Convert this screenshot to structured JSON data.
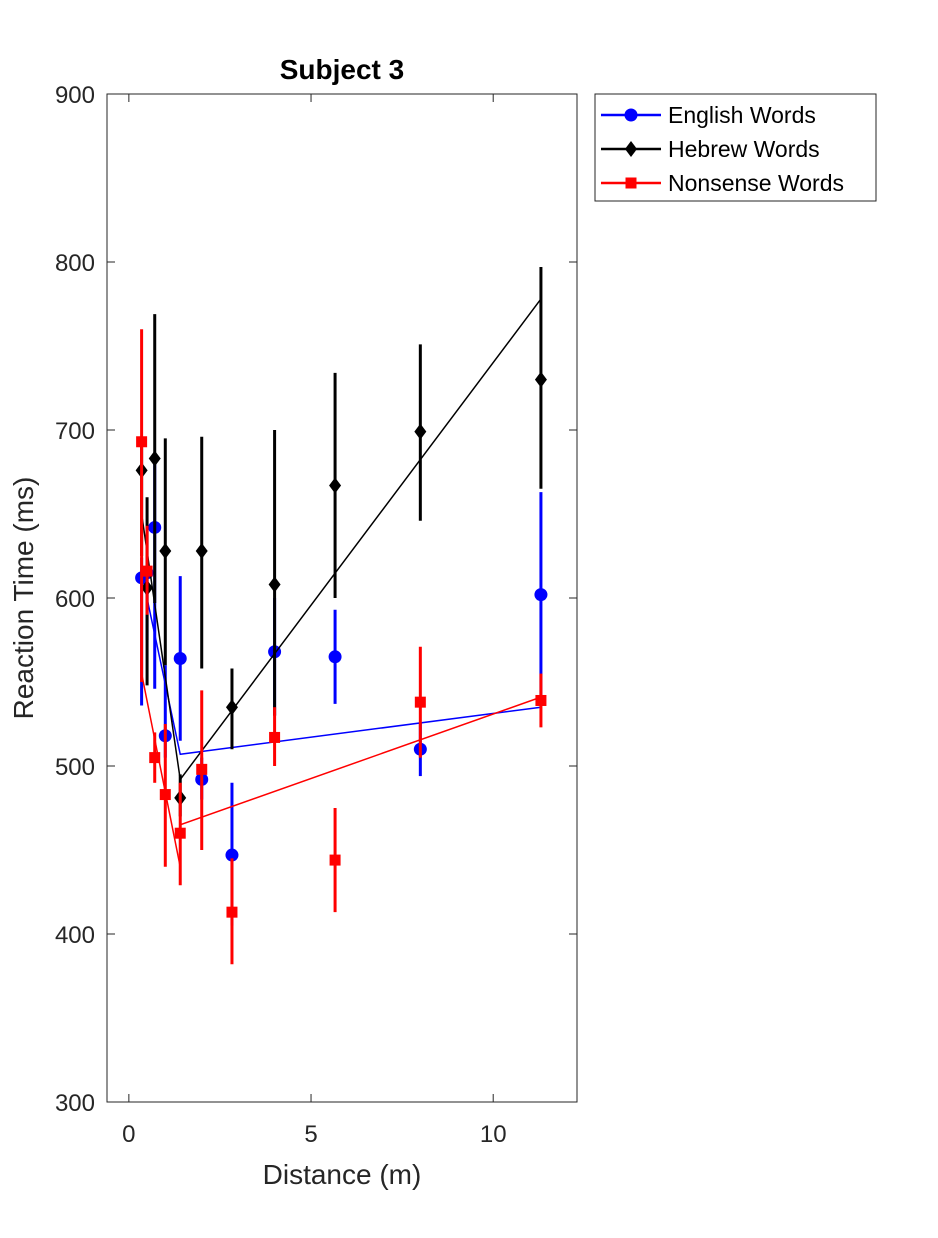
{
  "chart_data": {
    "type": "scatter",
    "title": "Subject 3",
    "xlabel": "Distance (m)",
    "ylabel": "Reaction Time (ms)",
    "xlim": [
      -0.6,
      12.3
    ],
    "ylim": [
      300,
      900
    ],
    "xticks": [
      0,
      5,
      10
    ],
    "yticks": [
      300,
      400,
      500,
      600,
      700,
      800,
      900
    ],
    "grid": false,
    "legend_position": "outside-top-right",
    "series": [
      {
        "name": "English Words",
        "color": "#0000ff",
        "marker": "circle",
        "points": [
          {
            "x": 0.35,
            "y": 612,
            "lo": 536,
            "hi": 624
          },
          {
            "x": 0.5,
            "y": 615,
            "lo": 575,
            "hi": 625
          },
          {
            "x": 0.71,
            "y": 642,
            "lo": 546,
            "hi": 680
          },
          {
            "x": 1.0,
            "y": 518,
            "lo": 505,
            "hi": 560
          },
          {
            "x": 1.41,
            "y": 564,
            "lo": 515,
            "hi": 613
          },
          {
            "x": 2.0,
            "y": 492,
            "lo": 480,
            "hi": 505
          },
          {
            "x": 2.83,
            "y": 447,
            "lo": 405,
            "hi": 490
          },
          {
            "x": 4.0,
            "y": 568,
            "lo": 530,
            "hi": 600
          },
          {
            "x": 5.66,
            "y": 565,
            "lo": 537,
            "hi": 593
          },
          {
            "x": 8.0,
            "y": 510,
            "lo": 494,
            "hi": 526
          },
          {
            "x": 11.31,
            "y": 602,
            "lo": 540,
            "hi": 663
          }
        ],
        "fit": [
          [
            0.35,
            615
          ],
          [
            1.41,
            507
          ],
          [
            11.31,
            535
          ]
        ]
      },
      {
        "name": "Hebrew Words",
        "color": "#000000",
        "marker": "diamond",
        "points": [
          {
            "x": 0.35,
            "y": 676,
            "lo": 625,
            "hi": 690
          },
          {
            "x": 0.5,
            "y": 606,
            "lo": 548,
            "hi": 660
          },
          {
            "x": 0.71,
            "y": 683,
            "lo": 597,
            "hi": 769
          },
          {
            "x": 1.0,
            "y": 628,
            "lo": 560,
            "hi": 695
          },
          {
            "x": 1.41,
            "y": 481,
            "lo": 470,
            "hi": 495
          },
          {
            "x": 2.0,
            "y": 628,
            "lo": 558,
            "hi": 696
          },
          {
            "x": 2.83,
            "y": 535,
            "lo": 510,
            "hi": 558
          },
          {
            "x": 4.0,
            "y": 608,
            "lo": 530,
            "hi": 700
          },
          {
            "x": 5.66,
            "y": 667,
            "lo": 600,
            "hi": 734
          },
          {
            "x": 8.0,
            "y": 699,
            "lo": 646,
            "hi": 751
          },
          {
            "x": 11.31,
            "y": 730,
            "lo": 665,
            "hi": 797
          }
        ],
        "fit": [
          [
            0.35,
            650
          ],
          [
            1.41,
            492
          ],
          [
            11.31,
            778
          ]
        ]
      },
      {
        "name": "Nonsense Words",
        "color": "#ff0000",
        "marker": "square",
        "points": [
          {
            "x": 0.35,
            "y": 693,
            "lo": 550,
            "hi": 760
          },
          {
            "x": 0.5,
            "y": 616,
            "lo": 590,
            "hi": 643
          },
          {
            "x": 0.71,
            "y": 505,
            "lo": 490,
            "hi": 520
          },
          {
            "x": 1.0,
            "y": 483,
            "lo": 440,
            "hi": 525
          },
          {
            "x": 1.41,
            "y": 460,
            "lo": 429,
            "hi": 490
          },
          {
            "x": 2.0,
            "y": 498,
            "lo": 450,
            "hi": 545
          },
          {
            "x": 2.83,
            "y": 413,
            "lo": 382,
            "hi": 445
          },
          {
            "x": 4.0,
            "y": 517,
            "lo": 500,
            "hi": 535
          },
          {
            "x": 5.66,
            "y": 444,
            "lo": 413,
            "hi": 475
          },
          {
            "x": 8.0,
            "y": 538,
            "lo": 505,
            "hi": 571
          },
          {
            "x": 11.31,
            "y": 539,
            "lo": 523,
            "hi": 555
          }
        ],
        "fit": [
          [
            0.35,
            555
          ],
          [
            1.41,
            440
          ],
          [
            1.41,
            465
          ],
          [
            11.31,
            541
          ]
        ]
      }
    ]
  }
}
